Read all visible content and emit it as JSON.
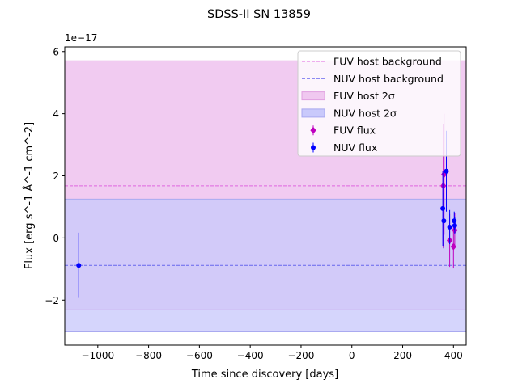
{
  "chart_data": {
    "type": "scatter",
    "title": "SDSS-II SN 13859",
    "xlabel": "Time since discovery [days]",
    "ylabel": "Flux [erg s^-1 Å^-1 cm^-2]",
    "y_scale_label": "1e−17",
    "xlim": [
      -1130,
      450
    ],
    "ylim": [
      -3.45,
      6.15
    ],
    "y_units_multiplier": 1e-17,
    "x_ticks": [
      -1000,
      -800,
      -600,
      -400,
      -200,
      0,
      200,
      400
    ],
    "x_tick_labels": [
      "−1000",
      "−800",
      "−600",
      "−400",
      "−200",
      "0",
      "200",
      "400"
    ],
    "y_ticks": [
      -2,
      0,
      2,
      4,
      6
    ],
    "y_tick_labels": [
      "−2",
      "0",
      "2",
      "4",
      "6"
    ],
    "grid": false,
    "legend_position": "top-right",
    "background": {
      "fuv": {
        "level": 1.68,
        "band_low": -2.3,
        "band_high": 5.7
      },
      "nuv": {
        "level": -0.88,
        "band_low": -3.02,
        "band_high": 1.25
      }
    },
    "series": [
      {
        "name": "FUV flux",
        "marker": "diamond",
        "color": "#bf00bf",
        "points": [
          {
            "x": 360,
            "y": 1.68,
            "err": 2.0
          },
          {
            "x": 363,
            "y": 2.05,
            "err": 1.95
          },
          {
            "x": 385,
            "y": -0.08,
            "err": 0.85
          },
          {
            "x": 400,
            "y": -0.28,
            "err": 0.7
          },
          {
            "x": 405,
            "y": 0.25,
            "err": 0.55
          }
        ]
      },
      {
        "name": "NUV flux",
        "marker": "circle",
        "color": "#0000ff",
        "points": [
          {
            "x": -1075,
            "y": -0.88,
            "err": 1.05
          },
          {
            "x": 358,
            "y": 0.95,
            "err": 1.2
          },
          {
            "x": 362,
            "y": 0.55,
            "err": 0.9
          },
          {
            "x": 372,
            "y": 2.15,
            "err": 1.3
          },
          {
            "x": 385,
            "y": 0.35,
            "err": 0.55
          },
          {
            "x": 403,
            "y": 0.55,
            "err": 0.3
          },
          {
            "x": 405,
            "y": 0.4,
            "err": 0.28
          }
        ]
      }
    ],
    "legend": [
      {
        "label": "FUV host background",
        "kind": "dashed-line",
        "color": "#e066e0"
      },
      {
        "label": "NUV host background",
        "kind": "dashed-line",
        "color": "#6666ee"
      },
      {
        "label": "FUV host 2σ",
        "kind": "patch",
        "color": "#f0c8f0",
        "edge": "#e0a0e0"
      },
      {
        "label": "NUV host 2σ",
        "kind": "patch",
        "color": "#c9c9fb",
        "edge": "#a8a8f0"
      },
      {
        "label": "FUV flux",
        "kind": "diamond",
        "color": "#bf00bf"
      },
      {
        "label": "NUV flux",
        "kind": "circle",
        "color": "#0000ff"
      }
    ],
    "colors": {
      "fuv_band": "#f0c8f0",
      "nuv_band": "#c9c9fb",
      "fuv_line": "#e066e0",
      "nuv_line": "#6666ee"
    }
  }
}
